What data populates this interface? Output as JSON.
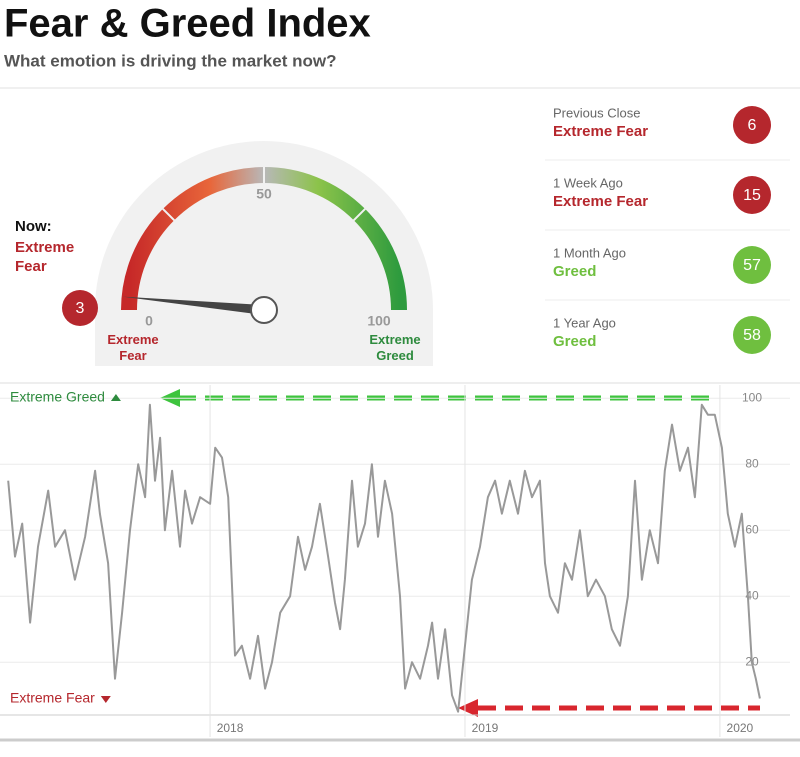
{
  "header": {
    "title": "Fear & Greed Index",
    "subtitle": "What emotion is driving the market now?"
  },
  "now": {
    "label": "Now:",
    "rating": "Extreme Fear",
    "color": "#b5272d"
  },
  "chart_data": [
    {
      "type": "gauge",
      "value": 3,
      "range": [
        0,
        100
      ],
      "ticks": [
        0,
        50,
        100
      ],
      "min_label": "Extreme Fear",
      "max_label": "Extreme Greed",
      "min_color": "#b5272d",
      "max_color": "#2e8b3e"
    },
    {
      "type": "line",
      "color": "#999999",
      "x": [
        2017.208,
        2017.235,
        2017.263,
        2017.294,
        2017.325,
        2017.365,
        2017.392,
        2017.431,
        2017.47,
        2017.51,
        2017.549,
        2017.568,
        2017.6,
        2017.627,
        2017.655,
        2017.686,
        2017.718,
        2017.745,
        2017.764,
        2017.784,
        2017.804,
        2017.823,
        2017.851,
        2017.882,
        2017.902,
        2017.929,
        2017.961,
        2018.0,
        2018.02,
        2018.047,
        2018.071,
        2018.098,
        2018.125,
        2018.157,
        2018.188,
        2018.216,
        2018.243,
        2018.275,
        2018.314,
        2018.345,
        2018.373,
        2018.4,
        2018.431,
        2018.463,
        2018.49,
        2018.51,
        2018.529,
        2018.557,
        2018.58,
        2018.608,
        2018.635,
        2018.659,
        2018.686,
        2018.714,
        2018.745,
        2018.765,
        2018.792,
        2018.824,
        2018.855,
        2018.871,
        2018.894,
        2018.922,
        2018.949,
        2018.973,
        2019.0,
        2019.027,
        2019.059,
        2019.09,
        2019.118,
        2019.145,
        2019.176,
        2019.208,
        2019.235,
        2019.263,
        2019.294,
        2019.314,
        2019.333,
        2019.365,
        2019.392,
        2019.42,
        2019.451,
        2019.482,
        2019.514,
        2019.549,
        2019.576,
        2019.608,
        2019.639,
        2019.667,
        2019.694,
        2019.725,
        2019.757,
        2019.784,
        2019.812,
        2019.843,
        2019.875,
        2019.902,
        2019.929,
        2019.953,
        2019.98,
        2020.008,
        2020.031,
        2020.059,
        2020.086,
        2020.11,
        2020.125,
        2020.141,
        2020.157
      ],
      "values": [
        75,
        52,
        62,
        32,
        55,
        72,
        55,
        60,
        45,
        58,
        78,
        65,
        50,
        15,
        35,
        60,
        80,
        70,
        98,
        75,
        88,
        60,
        78,
        55,
        72,
        62,
        70,
        68,
        85,
        82,
        70,
        22,
        25,
        15,
        28,
        12,
        20,
        35,
        40,
        58,
        48,
        55,
        68,
        52,
        38,
        30,
        45,
        75,
        55,
        62,
        80,
        58,
        75,
        65,
        40,
        12,
        20,
        15,
        25,
        32,
        15,
        30,
        10,
        5,
        25,
        45,
        55,
        70,
        75,
        65,
        75,
        65,
        78,
        70,
        75,
        50,
        40,
        35,
        50,
        45,
        60,
        40,
        45,
        40,
        30,
        25,
        40,
        75,
        45,
        60,
        50,
        78,
        92,
        78,
        85,
        70,
        98,
        95,
        95,
        85,
        65,
        55,
        65,
        40,
        20,
        15,
        9
      ],
      "xlim": [
        2017.176,
        2020.275
      ],
      "ylim": [
        4,
        104
      ],
      "xticks": [
        2018,
        2019,
        2020
      ],
      "yticks": [
        20,
        40,
        60,
        80,
        100
      ],
      "grid": true,
      "top_label": "Extreme Greed",
      "bottom_label": "Extreme Fear",
      "top_color": "#2e8b3e",
      "bottom_color": "#b5272d"
    }
  ],
  "history": [
    {
      "label": "Previous Close",
      "rating": "Extreme Fear",
      "value": 6,
      "color": "#b5272d"
    },
    {
      "label": "1 Week Ago",
      "rating": "Extreme Fear",
      "value": 15,
      "color": "#b5272d"
    },
    {
      "label": "1 Month Ago",
      "rating": "Greed",
      "value": 57,
      "color": "#6fbf3f"
    },
    {
      "label": "1 Year Ago",
      "rating": "Greed",
      "value": 58,
      "color": "#6fbf3f"
    }
  ]
}
